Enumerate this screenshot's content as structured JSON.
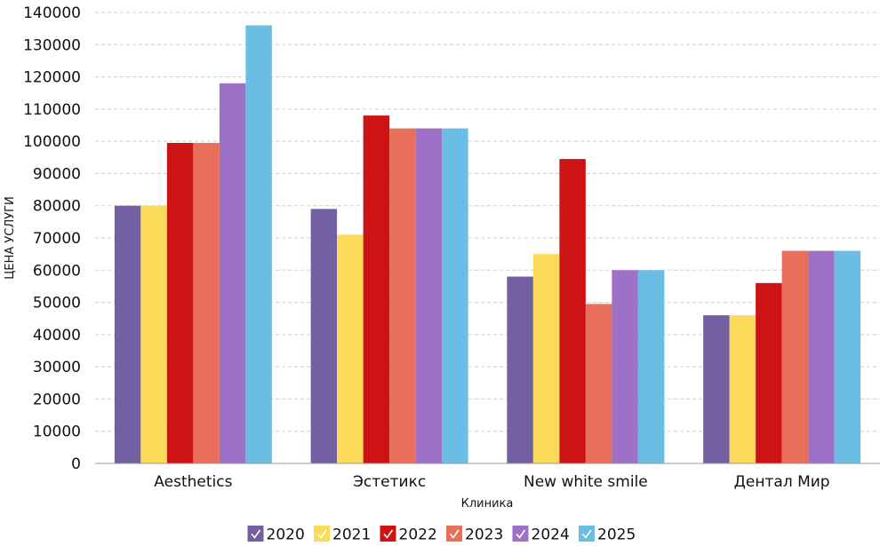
{
  "chart_data": {
    "type": "bar",
    "title": "",
    "xlabel": "Клиника",
    "ylabel": "ЦЕНА УСЛУГИ",
    "ylim": [
      0,
      140000
    ],
    "ytick_step": 10000,
    "grid": true,
    "legend_position": "bottom",
    "categories": [
      "Aesthetics",
      "Эстетикс",
      "New white smile",
      "Дентал Мир"
    ],
    "series": [
      {
        "name": "2020",
        "color": "#7360a3",
        "values": [
          80000,
          79000,
          58000,
          46000
        ]
      },
      {
        "name": "2021",
        "color": "#fcdb5a",
        "values": [
          80000,
          71000,
          65000,
          46000
        ]
      },
      {
        "name": "2022",
        "color": "#cc1414",
        "values": [
          99500,
          108000,
          94500,
          56000
        ]
      },
      {
        "name": "2023",
        "color": "#e8705a",
        "values": [
          99500,
          104000,
          49500,
          66000
        ]
      },
      {
        "name": "2024",
        "color": "#9d71c7",
        "values": [
          118000,
          104000,
          60000,
          66000
        ]
      },
      {
        "name": "2025",
        "color": "#6abde3",
        "values": [
          136000,
          104000,
          60000,
          66000
        ]
      }
    ]
  }
}
